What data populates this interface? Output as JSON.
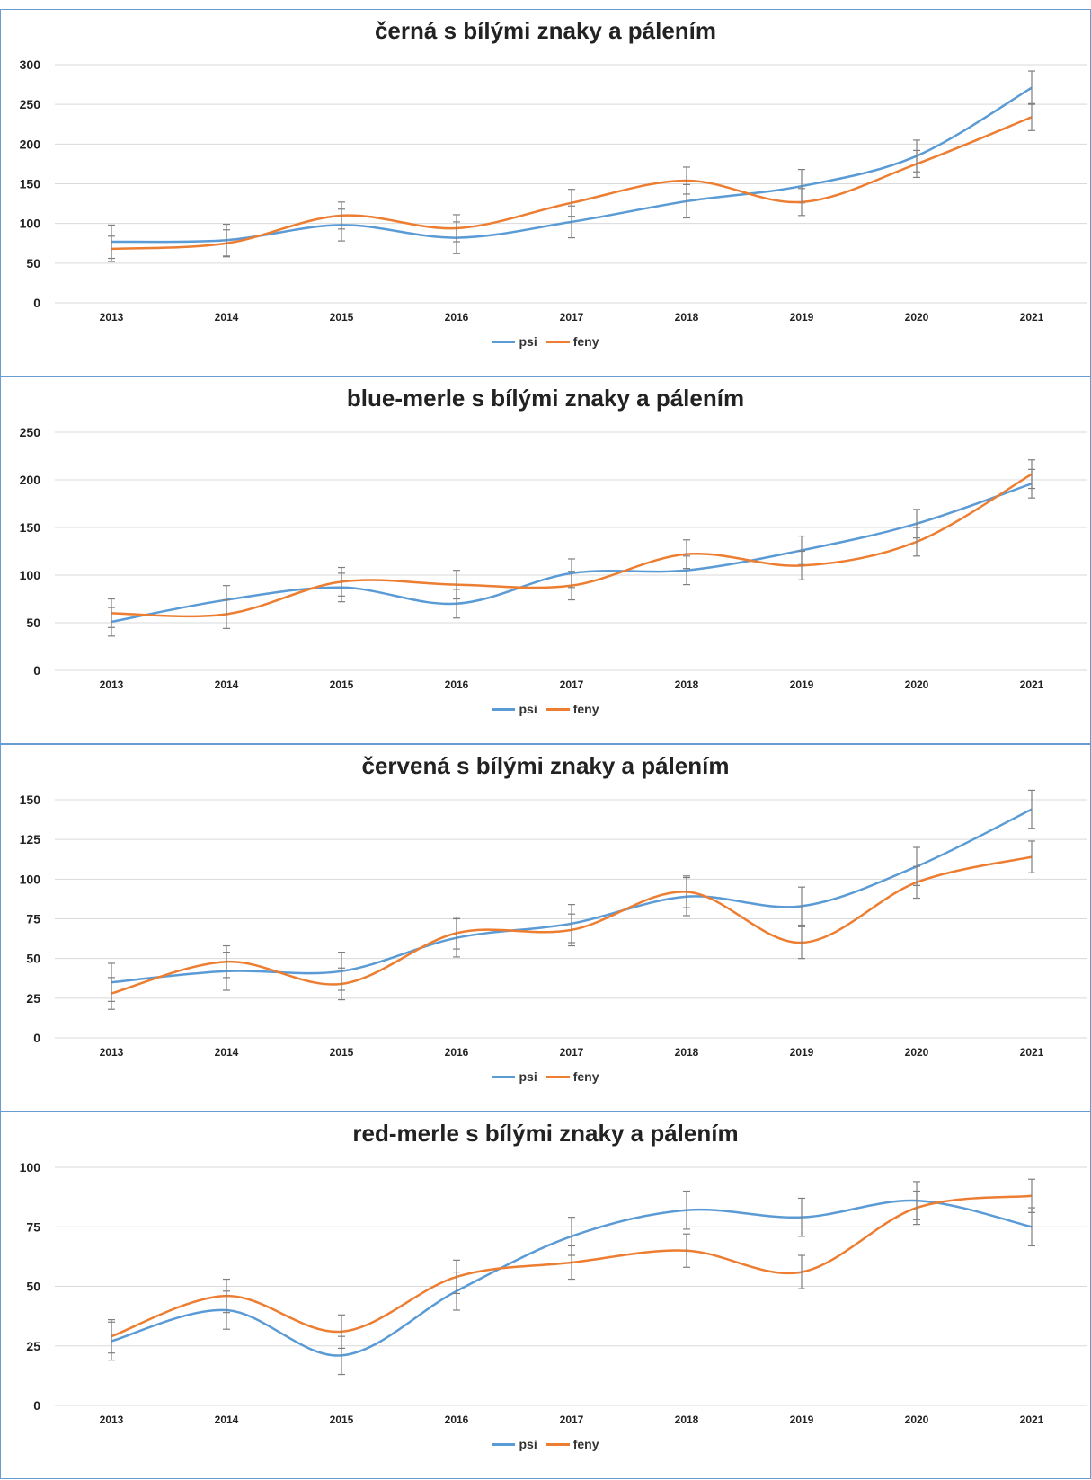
{
  "legend": {
    "psi": "psi",
    "feny": "feny"
  },
  "colors": {
    "psi": "#5b9bd5",
    "feny": "#ed7d31",
    "grid": "#d9d9d9",
    "error": "#7f7f7f",
    "border": "#6a9bd1"
  },
  "chart_data": [
    {
      "type": "line",
      "title": "černá s bílými znaky a pálením",
      "categories": [
        "2013",
        "2014",
        "2015",
        "2016",
        "2017",
        "2018",
        "2019",
        "2020",
        "2021"
      ],
      "ylim": [
        0,
        300
      ],
      "yticks": [
        0,
        50,
        100,
        150,
        200,
        250,
        300
      ],
      "error_bars": true,
      "grid": true,
      "legend_position": "bottom",
      "series": [
        {
          "name": "psi",
          "values": [
            77,
            79,
            98,
            82,
            102,
            128,
            147,
            185,
            271
          ],
          "error": [
            21,
            20,
            20,
            20,
            20,
            21,
            21,
            20,
            21
          ]
        },
        {
          "name": "feny",
          "values": [
            68,
            75,
            110,
            94,
            126,
            154,
            127,
            175,
            234
          ],
          "error": [
            16,
            17,
            17,
            17,
            17,
            17,
            17,
            17,
            17
          ]
        }
      ]
    },
    {
      "type": "line",
      "title": "blue-merle s bílými znaky a pálením",
      "categories": [
        "2013",
        "2014",
        "2015",
        "2016",
        "2017",
        "2018",
        "2019",
        "2020",
        "2021"
      ],
      "ylim": [
        0,
        250
      ],
      "yticks": [
        0,
        50,
        100,
        150,
        200,
        250
      ],
      "error_bars": true,
      "grid": true,
      "legend_position": "bottom",
      "series": [
        {
          "name": "psi",
          "values": [
            51,
            74,
            87,
            70,
            102,
            105,
            126,
            154,
            196
          ],
          "error": [
            15,
            15,
            15,
            15,
            15,
            15,
            15,
            15,
            15
          ]
        },
        {
          "name": "feny",
          "values": [
            60,
            59,
            93,
            90,
            89,
            122,
            110,
            135,
            206
          ],
          "error": [
            15,
            15,
            15,
            15,
            15,
            15,
            15,
            15,
            15
          ]
        }
      ]
    },
    {
      "type": "line",
      "title": "červená s bílými znaky a pálením",
      "categories": [
        "2013",
        "2014",
        "2015",
        "2016",
        "2017",
        "2018",
        "2019",
        "2020",
        "2021"
      ],
      "ylim": [
        0,
        150
      ],
      "yticks": [
        0,
        25,
        50,
        75,
        100,
        125,
        150
      ],
      "error_bars": true,
      "grid": true,
      "legend_position": "bottom",
      "series": [
        {
          "name": "psi",
          "values": [
            35,
            42,
            42,
            63,
            72,
            89,
            83,
            108,
            144
          ],
          "error": [
            12,
            12,
            12,
            12,
            12,
            12,
            12,
            12,
            12
          ]
        },
        {
          "name": "feny",
          "values": [
            28,
            48,
            34,
            66,
            68,
            92,
            60,
            98,
            114
          ],
          "error": [
            10,
            10,
            10,
            10,
            10,
            10,
            10,
            10,
            10
          ]
        }
      ]
    },
    {
      "type": "line",
      "title": "red-merle s bílými znaky a pálením",
      "categories": [
        "2013",
        "2014",
        "2015",
        "2016",
        "2017",
        "2018",
        "2019",
        "2020",
        "2021"
      ],
      "ylim": [
        0,
        100
      ],
      "yticks": [
        0,
        25,
        50,
        75,
        100
      ],
      "error_bars": true,
      "grid": true,
      "legend_position": "bottom",
      "series": [
        {
          "name": "psi",
          "values": [
            27,
            40,
            21,
            48,
            71,
            82,
            79,
            86,
            75
          ],
          "error": [
            8,
            8,
            8,
            8,
            8,
            8,
            8,
            8,
            8
          ]
        },
        {
          "name": "feny",
          "values": [
            29,
            46,
            31,
            54,
            60,
            65,
            56,
            83,
            88
          ],
          "error": [
            7,
            7,
            7,
            7,
            7,
            7,
            7,
            7,
            7
          ]
        }
      ]
    }
  ]
}
